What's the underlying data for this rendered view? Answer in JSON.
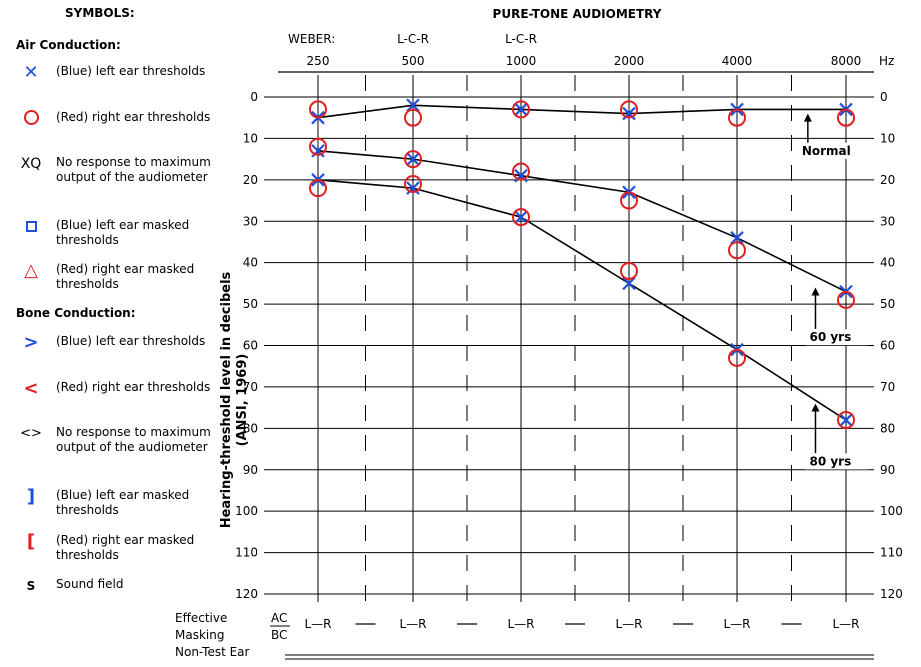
{
  "legend": {
    "title": "SYMBOLS:",
    "air_heading": "Air Conduction:",
    "bone_heading": "Bone Conduction:",
    "items": [
      {
        "symbol": "✕",
        "text": "(Blue) left ear thresholds"
      },
      {
        "symbol": "○",
        "text": "(Red) right ear thresholds"
      },
      {
        "symbol": "XQ",
        "text": "No response to maximum output of the audiometer"
      },
      {
        "symbol": "□",
        "text": "(Blue) left ear masked thresholds"
      },
      {
        "symbol": "△",
        "text": "(Red) right ear masked thresholds"
      },
      {
        "symbol": ">",
        "text": "(Blue) left ear thresholds"
      },
      {
        "symbol": "<",
        "text": "(Red) right ear thresholds"
      },
      {
        "symbol": "<>",
        "text": "No response to maximum output of the audiometer"
      },
      {
        "symbol": "]",
        "text": "(Blue) left ear masked thresholds"
      },
      {
        "symbol": "[",
        "text": "(Red) right ear masked thresholds"
      },
      {
        "symbol": "S",
        "text": "Sound field"
      }
    ]
  },
  "colors": {
    "blue": "#1f4fe0",
    "red": "#e02020",
    "line": "#000000"
  },
  "chart_data": {
    "type": "line",
    "title": "PURE-TONE AUDIOMETRY",
    "ylabel_line1": "Hearing-threshold level in decibels",
    "ylabel_line2": "(ANSI, 1969)",
    "x_unit": "Hz",
    "x": [
      "250",
      "500",
      "1000",
      "2000",
      "4000",
      "8000"
    ],
    "ylim": [
      0,
      120
    ],
    "y_ticks": [
      0,
      10,
      20,
      30,
      40,
      50,
      60,
      70,
      80,
      90,
      100,
      110,
      120
    ],
    "y_reversed": true,
    "weber_label": "WEBER:",
    "weber_values": [
      "",
      "L-C-R",
      "L-C-R",
      "",
      "",
      ""
    ],
    "masking": {
      "label_lines": [
        "Effective",
        "Masking",
        "Non-Test Ear"
      ],
      "ac": "AC",
      "bc": "BC",
      "values": [
        "L—R",
        "L—R",
        "L—R",
        "L—R",
        "L—R",
        "L—R"
      ]
    },
    "curves": [
      {
        "name": "Normal",
        "values": [
          5,
          2,
          3,
          4,
          3,
          3
        ]
      },
      {
        "name": "60 yrs",
        "values": [
          13,
          15,
          19,
          23,
          34,
          47
        ]
      },
      {
        "name": "80 yrs",
        "values": [
          20,
          22,
          29,
          45,
          61,
          78
        ]
      }
    ],
    "series": [
      {
        "name": "left ear (X)",
        "color": "blue",
        "marker": "x",
        "groups": [
          [
            5,
            2,
            3,
            4,
            3,
            3
          ],
          [
            13,
            15,
            19,
            23,
            34,
            47
          ],
          [
            20,
            22,
            29,
            45,
            61,
            78
          ]
        ]
      },
      {
        "name": "right ear (O)",
        "color": "red",
        "marker": "o",
        "groups": [
          [
            3,
            5,
            3,
            3,
            5,
            5
          ],
          [
            12,
            15,
            18,
            25,
            37,
            49
          ],
          [
            22,
            21,
            29,
            42,
            63,
            78
          ]
        ]
      }
    ],
    "annotations": [
      {
        "text": "Normal",
        "freq_index": 4.65,
        "arrow_from_db": 11,
        "arrow_to_db": 4,
        "label_db": 13
      },
      {
        "text": "60 yrs",
        "freq_index": 4.72,
        "arrow_from_db": 56,
        "arrow_to_db": 46,
        "label_db": 58
      },
      {
        "text": "80 yrs",
        "freq_index": 4.72,
        "arrow_from_db": 86,
        "arrow_to_db": 74,
        "label_db": 88
      }
    ]
  }
}
